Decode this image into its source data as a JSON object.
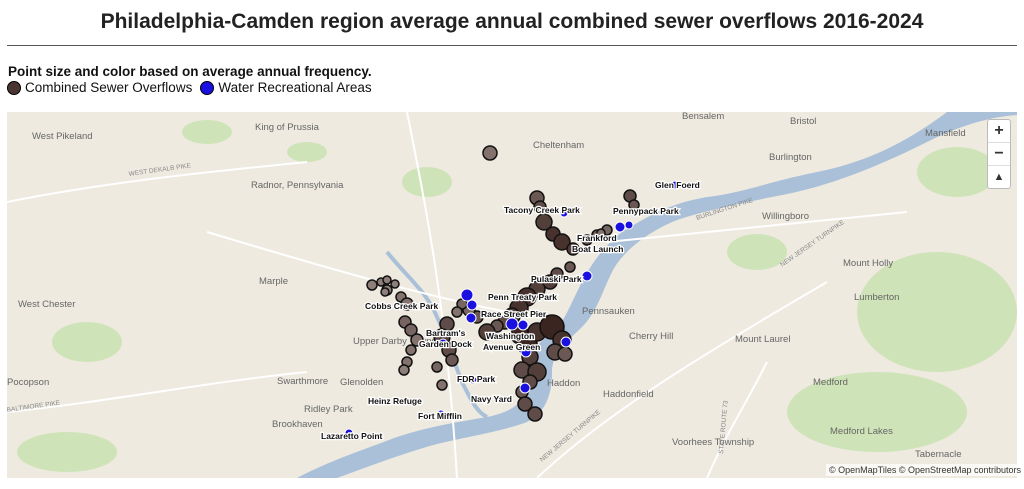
{
  "title": "Philadelphia-Camden region average annual combined sewer overflows 2016-2024",
  "subtitle": "Point size and color based on average annual frequency.",
  "legend": [
    {
      "label": "Combined Sewer Overflows",
      "color": "#4a3630"
    },
    {
      "label": "Water Recreational Areas",
      "color": "#1a10e0"
    }
  ],
  "zoom": {
    "in": "+",
    "out": "−",
    "reset": "▲"
  },
  "attribution": "© OpenMapTiles © OpenStreetMap contributors",
  "place_labels": [
    "West Pikeland",
    "King of Prussia",
    "Radnor, Pennsylvania",
    "Bensalem",
    "Bristol",
    "Mansfield",
    "Burlington",
    "Willingboro",
    "Cheltenham",
    "Mount Holly",
    "Lumberton",
    "Marple",
    "West Chester",
    "Upper Darby Township",
    "Pennsauken",
    "Cherry Hill",
    "Mount Laurel",
    "Haddonfield",
    "Swarthmore",
    "Glenolden",
    "Pocopson",
    "Ridley Park",
    "Brookhaven",
    "Medford",
    "Medford Lakes",
    "Voorhees Township",
    "Tabernacle",
    "Haddon"
  ],
  "road_labels": [
    "WEST DEKALB PIKE",
    "BURLINGTON PIKE",
    "NEW JERSEY TURNPIKE",
    "BALTIMORE PIKE",
    "STATE ROUTE 73",
    "NEW JERSEY TURNPIKE"
  ],
  "rec_areas": [
    "Glen Foerd",
    "Pennypack Park",
    "Tacony Creek Park",
    "Frankford Boat Launch",
    "Pulaski Park",
    "Penn Treaty Park",
    "Cobbs Creek Park",
    "Race Street Pier",
    "Bartram's Garden Dock",
    "Washington Avenue Green",
    "FDR Park",
    "Heinz Refuge",
    "Navy Yard",
    "Fort Mifflin",
    "Lazaretto Point"
  ],
  "map_colors": {
    "water": "#a9c0d8",
    "green": "#cfe3b8",
    "land": "#eeeae0",
    "cso_light": "#b3a5a2",
    "cso_dark": "#3b2520",
    "rec": "#1a10e0"
  }
}
